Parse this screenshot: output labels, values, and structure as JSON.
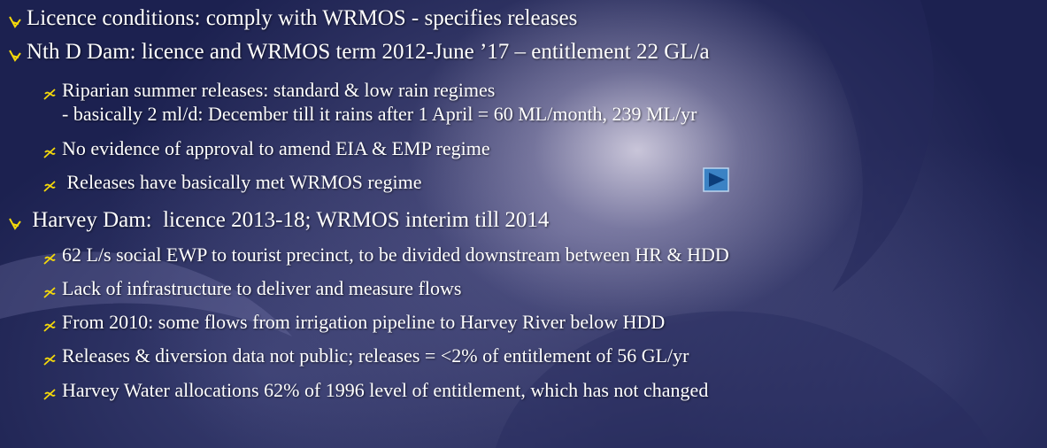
{
  "bullets": [
    {
      "text": "Licence conditions: comply with WRMOS - specifies releases",
      "sub": []
    },
    {
      "text": "Nth D Dam: licence and WRMOS term 2012-June ’17 – entitlement 22 GL/a",
      "sub": [
        [
          "Riparian summer releases: standard & low rain regimes",
          "- basically 2 ml/d: December till it rains after 1 April = 60 ML/month, 239 ML/yr"
        ],
        [
          "No evidence of approval to amend EIA & EMP regime"
        ],
        [
          " Releases have basically met WRMOS regime"
        ]
      ]
    },
    {
      "text": " Harvey Dam:  licence 2013-18; WRMOS interim till 2014",
      "sub": [
        [
          "62 L/s social EWP to tourist precinct, to be divided downstream between HR & HDD"
        ],
        [
          "Lack of infrastructure to deliver and measure flows"
        ],
        [
          "From 2010: some flows from irrigation pipeline to Harvey River below HDD"
        ],
        [
          "Releases & diversion data not public; releases = <2% of entitlement of 56 GL/yr"
        ],
        [
          "Harvey Water allocations 62% of 1996 level of entitlement, which has not changed"
        ]
      ]
    }
  ]
}
